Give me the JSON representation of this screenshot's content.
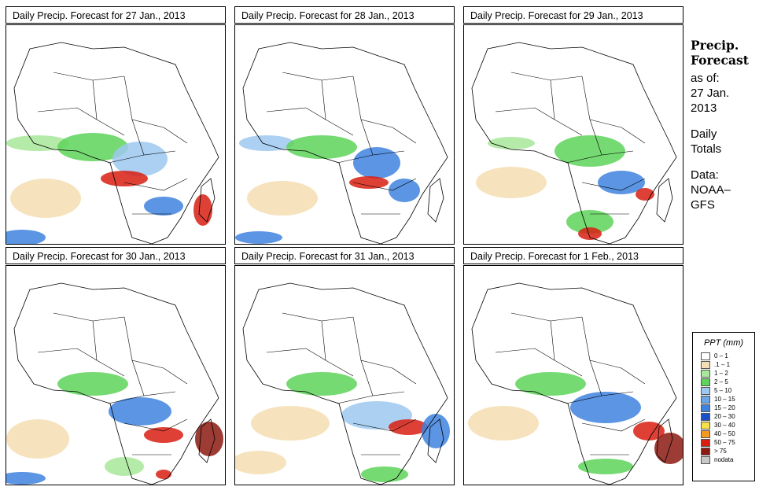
{
  "panels": [
    {
      "title": "Daily Precip. Forecast for  27 Jan., 2013"
    },
    {
      "title": "Daily Precip. Forecast for  28 Jan., 2013"
    },
    {
      "title": "Daily Precip. Forecast for  29 Jan., 2013"
    },
    {
      "title": "Daily Precip. Forecast for  30 Jan., 2013"
    },
    {
      "title": "Daily Precip. Forecast for  31 Jan., 2013"
    },
    {
      "title": "Daily Precip. Forecast for  1 Feb., 2013"
    }
  ],
  "sidebar": {
    "heading1": "Precip.",
    "heading2": "Forecast",
    "asof_label": "as of:",
    "asof_date1": "27 Jan.",
    "asof_date2": "2013",
    "totals1": "Daily",
    "totals2": "Totals",
    "data_label": "Data:",
    "data_src1": "NOAA–",
    "data_src2": "GFS"
  },
  "legend": {
    "title": "PPT (mm)",
    "items": [
      {
        "label": "0 – 1",
        "color": "#ffffff"
      },
      {
        "label": ".1 – 1",
        "color": "#f5deb3"
      },
      {
        "label": "1 – 2",
        "color": "#a8e89a"
      },
      {
        "label": "2 – 5",
        "color": "#5ed35b"
      },
      {
        "label": "5 – 10",
        "color": "#9ec8f0"
      },
      {
        "label": "10 – 15",
        "color": "#6aa6e8"
      },
      {
        "label": "15 – 20",
        "color": "#3e82de"
      },
      {
        "label": "20 – 30",
        "color": "#1b4fc9"
      },
      {
        "label": "30 – 40",
        "color": "#f7e04a"
      },
      {
        "label": "40 – 50",
        "color": "#f59a1e"
      },
      {
        "label": "50 – 75",
        "color": "#d81e12"
      },
      {
        "label": "> 75",
        "color": "#8b1a10"
      },
      {
        "label": "nodata",
        "color": "#c8c8c8"
      }
    ]
  }
}
